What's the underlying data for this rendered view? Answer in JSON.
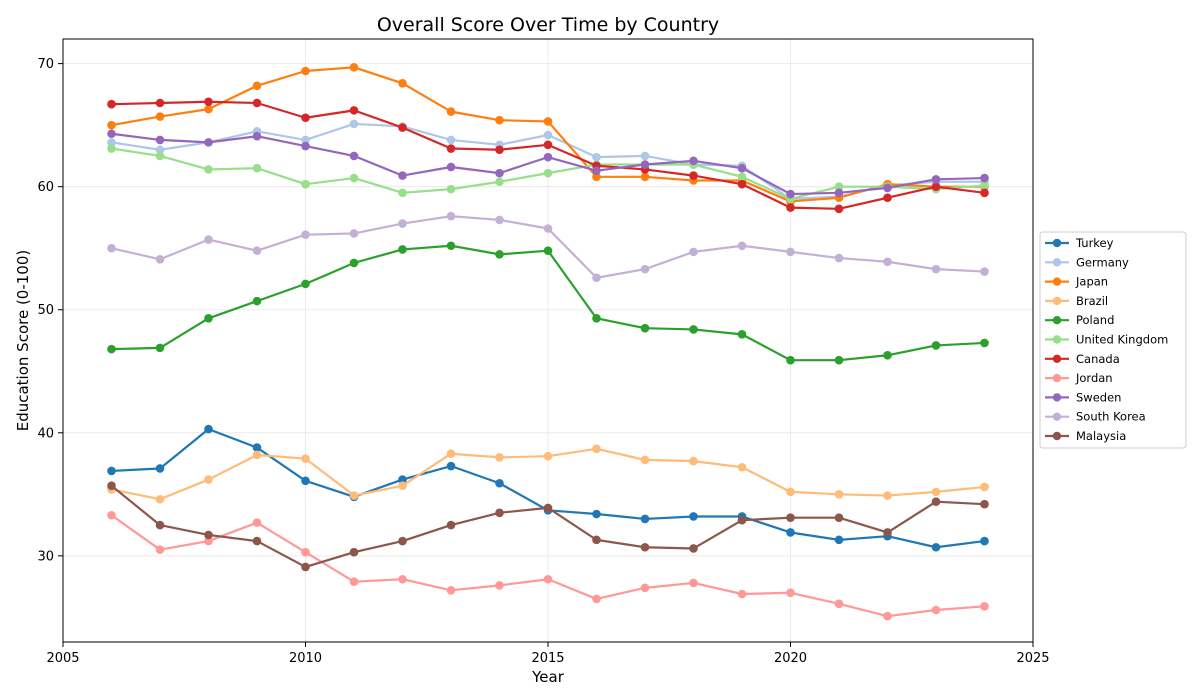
{
  "chart_data": {
    "type": "line",
    "title": "Overall Score Over Time by Country",
    "xlabel": "Year",
    "ylabel": "Education Score (0-100)",
    "xlim": [
      2005,
      2025
    ],
    "ylim": [
      23,
      72
    ],
    "xticks": [
      2005,
      2010,
      2015,
      2020,
      2025
    ],
    "yticks": [
      30,
      40,
      50,
      60,
      70
    ],
    "grid": true,
    "legend_position": "center-right",
    "x": [
      2006,
      2007,
      2008,
      2009,
      2010,
      2011,
      2012,
      2013,
      2014,
      2015,
      2016,
      2017,
      2018,
      2019,
      2020,
      2021,
      2022,
      2023,
      2024
    ],
    "series": [
      {
        "name": "Turkey",
        "color": "#1f77b4",
        "values": [
          36.9,
          37.1,
          40.3,
          38.8,
          36.1,
          34.8,
          36.2,
          37.3,
          35.9,
          33.7,
          33.4,
          33.0,
          33.2,
          33.2,
          31.9,
          31.3,
          31.6,
          30.7,
          31.2
        ]
      },
      {
        "name": "Germany",
        "color": "#aec7e8",
        "values": [
          63.6,
          63.0,
          63.6,
          64.5,
          63.8,
          65.1,
          64.9,
          63.8,
          63.4,
          64.2,
          62.4,
          62.5,
          61.8,
          61.7,
          59.0,
          59.2,
          60.1,
          60.4,
          60.4
        ]
      },
      {
        "name": "Japan",
        "color": "#ff7f0e",
        "values": [
          65.0,
          65.7,
          66.3,
          68.2,
          69.4,
          69.7,
          68.4,
          66.1,
          65.4,
          65.3,
          60.8,
          60.8,
          60.5,
          60.5,
          58.8,
          59.1,
          60.2,
          60.0,
          60.0
        ]
      },
      {
        "name": "Brazil",
        "color": "#ffbb78",
        "values": [
          35.4,
          34.6,
          36.2,
          38.2,
          37.9,
          34.9,
          35.7,
          38.3,
          38.0,
          38.1,
          38.7,
          37.8,
          37.7,
          37.2,
          35.2,
          35.0,
          34.9,
          35.2,
          35.6
        ]
      },
      {
        "name": "Poland",
        "color": "#2ca02c",
        "values": [
          46.8,
          46.9,
          49.3,
          50.7,
          52.1,
          53.8,
          54.9,
          55.2,
          54.5,
          54.8,
          49.3,
          48.5,
          48.4,
          48.0,
          45.9,
          45.9,
          46.3,
          47.1,
          47.3
        ]
      },
      {
        "name": "United Kingdom",
        "color": "#98df8a",
        "values": [
          63.1,
          62.5,
          61.4,
          61.5,
          60.2,
          60.7,
          59.5,
          59.8,
          60.4,
          61.1,
          61.8,
          61.8,
          61.8,
          60.8,
          59.0,
          60.0,
          60.0,
          59.8,
          60.1
        ]
      },
      {
        "name": "Canada",
        "color": "#d62728",
        "values": [
          66.7,
          66.8,
          66.9,
          66.8,
          65.6,
          66.2,
          64.8,
          63.1,
          63.0,
          63.4,
          61.7,
          61.4,
          60.9,
          60.2,
          58.3,
          58.2,
          59.1,
          60.0,
          59.5
        ]
      },
      {
        "name": "Jordan",
        "color": "#ff9896",
        "values": [
          33.3,
          30.5,
          31.2,
          32.7,
          30.3,
          27.9,
          28.1,
          27.2,
          27.6,
          28.1,
          26.5,
          27.4,
          27.8,
          26.9,
          27.0,
          26.1,
          25.1,
          25.6,
          25.9
        ]
      },
      {
        "name": "Sweden",
        "color": "#9467bd",
        "values": [
          64.3,
          63.8,
          63.6,
          64.1,
          63.3,
          62.5,
          60.9,
          61.6,
          61.1,
          62.4,
          61.3,
          61.8,
          62.1,
          61.5,
          59.4,
          59.5,
          59.9,
          60.6,
          60.7
        ]
      },
      {
        "name": "South Korea",
        "color": "#c5b0d5",
        "values": [
          55.0,
          54.1,
          55.7,
          54.8,
          56.1,
          56.2,
          57.0,
          57.6,
          57.3,
          56.6,
          52.6,
          53.3,
          54.7,
          55.2,
          54.7,
          54.2,
          53.9,
          53.3,
          53.1
        ]
      },
      {
        "name": "Malaysia",
        "color": "#8c564b",
        "values": [
          35.7,
          32.5,
          31.7,
          31.2,
          29.1,
          30.3,
          31.2,
          32.5,
          33.5,
          33.9,
          31.3,
          30.7,
          30.6,
          32.9,
          33.1,
          33.1,
          31.9,
          34.4,
          34.2
        ]
      }
    ]
  }
}
